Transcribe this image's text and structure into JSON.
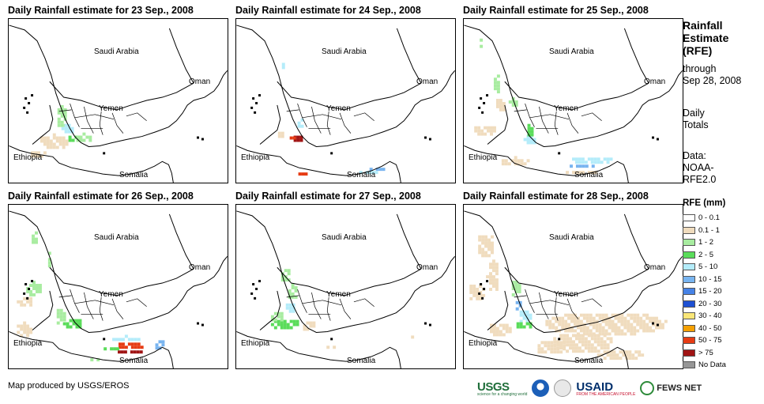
{
  "panels": [
    {
      "title": "Daily Rainfall estimate for 23 Sep., 2008"
    },
    {
      "title": "Daily Rainfall estimate for 24 Sep., 2008"
    },
    {
      "title": "Daily Rainfall estimate for 25 Sep., 2008"
    },
    {
      "title": "Daily Rainfall estimate for 26 Sep., 2008"
    },
    {
      "title": "Daily Rainfall estimate for 27 Sep., 2008"
    },
    {
      "title": "Daily Rainfall estimate for 28 Sep., 2008"
    }
  ],
  "map_labels": {
    "saudi": "Saudi Arabia",
    "oman": "Oman",
    "yemen": "Yemen",
    "ethiopia": "Ethiopia",
    "somalia": "Somalia"
  },
  "sidebar": {
    "title_line1": "Rainfall",
    "title_line2": "Estimate",
    "title_line3": "(RFE)",
    "through_line1": "through",
    "through_line2": "Sep 28, 2008",
    "daily_line1": "Daily",
    "daily_line2": "Totals",
    "data_line1": "Data:",
    "data_line2": "NOAA-",
    "data_line3": "RFE2.0"
  },
  "legend": {
    "title": "RFE (mm)",
    "items": [
      {
        "label": "0 - 0.1",
        "color": "#ffffff"
      },
      {
        "label": "0.1 - 1",
        "color": "#f0dcbe"
      },
      {
        "label": "1 - 2",
        "color": "#a8eca0"
      },
      {
        "label": "2 - 5",
        "color": "#5adc5a"
      },
      {
        "label": "5 - 10",
        "color": "#b4ecfa"
      },
      {
        "label": "10 - 15",
        "color": "#78b4f0"
      },
      {
        "label": "15 - 20",
        "color": "#4682e6"
      },
      {
        "label": "20 - 30",
        "color": "#1e50d2"
      },
      {
        "label": "30 - 40",
        "color": "#fae678"
      },
      {
        "label": "40 - 50",
        "color": "#f5a000"
      },
      {
        "label": "50 - 75",
        "color": "#e63c14"
      },
      {
        "label": "> 75",
        "color": "#a01414"
      },
      {
        "label": "No Data",
        "color": "#969696"
      }
    ]
  },
  "credit": "Map produced by USGS/EROS",
  "logos": {
    "usgs": "USGS",
    "usgs_tagline": "science for a changing world",
    "usaid": "USAID",
    "usaid_tagline": "FROM THE AMERICAN PEOPLE",
    "fews": "FEWS NET"
  }
}
